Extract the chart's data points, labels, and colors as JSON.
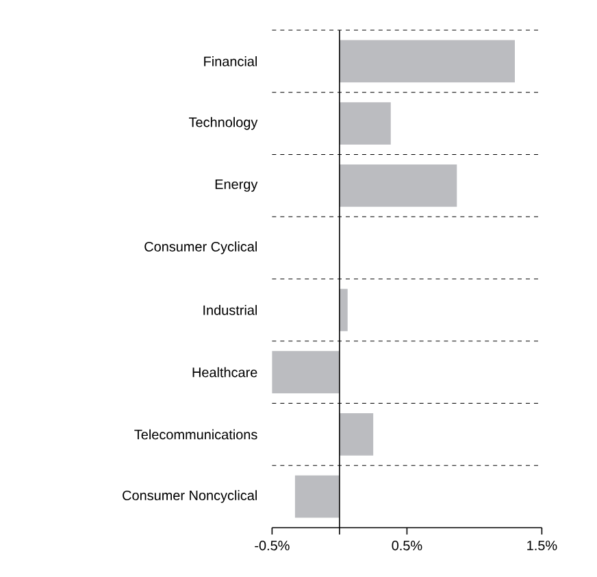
{
  "chart_data": {
    "type": "bar",
    "orientation": "horizontal",
    "categories": [
      "Financial",
      "Technology",
      "Energy",
      "Consumer Cyclical",
      "Industrial",
      "Healthcare",
      "Telecommunications",
      "Consumer Noncyclical"
    ],
    "values": [
      1.3,
      0.38,
      0.87,
      0,
      0.06,
      -0.5,
      0.25,
      -0.33
    ],
    "color": "#bbbcc0",
    "xlim": [
      -0.5,
      1.5
    ],
    "xticks": [
      {
        "value": -0.5,
        "label": "-0.5%"
      },
      {
        "value": 0,
        "label": null
      },
      {
        "value": 0.5,
        "label": "0.5%"
      },
      {
        "value": 1.5,
        "label": "1.5%"
      }
    ],
    "grid": "y"
  }
}
